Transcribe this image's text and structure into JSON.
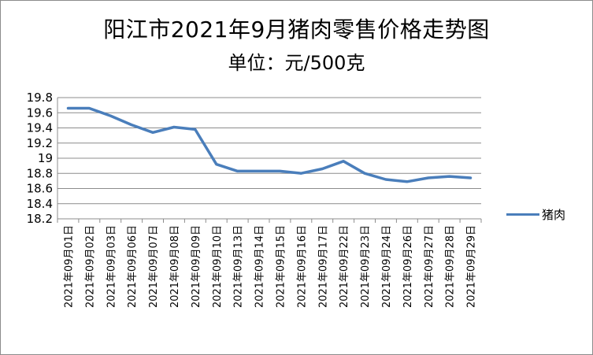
{
  "chart_data": {
    "type": "line",
    "title": "阳江市2021年9月猪肉零售价格走势图",
    "subtitle": "单位：元/500克",
    "categories": [
      "2021年09月01日",
      "2021年09月02日",
      "2021年09月03日",
      "2021年09月06日",
      "2021年09月07日",
      "2021年09月08日",
      "2021年09月09日",
      "2021年09月10日",
      "2021年09月13日",
      "2021年09月14日",
      "2021年09月15日",
      "2021年09月16日",
      "2021年09月17日",
      "2021年09月22日",
      "2021年09月23日",
      "2021年09月24日",
      "2021年09月26日",
      "2021年09月27日",
      "2021年09月28日",
      "2021年09月29日"
    ],
    "series": [
      {
        "name": "猪肉",
        "color": "#4a7ebb",
        "values": [
          19.66,
          19.66,
          19.56,
          19.44,
          19.34,
          19.41,
          19.38,
          18.92,
          18.83,
          18.83,
          18.83,
          18.8,
          18.86,
          18.96,
          18.8,
          18.72,
          18.69,
          18.74,
          18.76,
          18.74
        ]
      }
    ],
    "ylim": [
      18.2,
      19.8
    ],
    "yticks": [
      "19.8",
      "19.6",
      "19.4",
      "19.2",
      "19",
      "18.8",
      "18.6",
      "18.4",
      "18.2"
    ],
    "grid": true,
    "legend": "right"
  }
}
